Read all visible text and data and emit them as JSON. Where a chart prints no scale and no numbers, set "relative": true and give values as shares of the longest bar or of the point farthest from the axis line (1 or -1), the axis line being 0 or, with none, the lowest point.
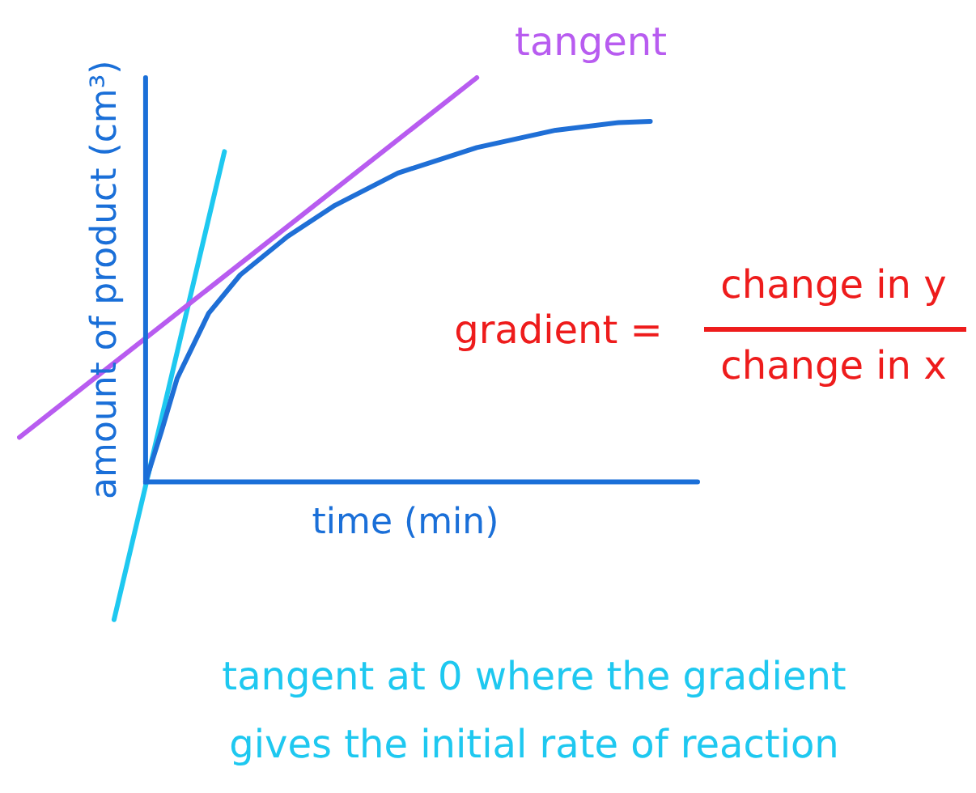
{
  "chart_data": {
    "type": "line",
    "relative": true,
    "xlabel": "time (min)",
    "ylabel": "amount of product (cm³)",
    "categories": [
      null,
      null,
      null,
      null,
      null,
      null,
      null,
      null,
      null,
      null,
      null,
      null,
      null,
      null,
      null,
      null,
      null,
      null,
      null,
      null,
      null,
      null,
      null,
      null,
      null,
      null,
      null,
      null,
      null,
      null,
      null,
      null,
      null,
      null,
      null,
      null,
      null,
      null,
      null,
      null,
      null,
      null,
      null,
      null
    ],
    "legend": false,
    "marker": "none",
    "line_style": "solid",
    "series": [
      {
        "color": "#1f6fd6",
        "values": [
          null,
          null,
          null,
          null,
          null,
          null,
          null,
          null,
          0,
          0.124,
          0.256,
          null,
          0.417,
          null,
          0.512,
          null,
          null,
          0.607,
          null,
          null,
          0.684,
          null,
          null,
          null,
          0.764,
          null,
          null,
          null,
          null,
          0.827,
          null,
          null,
          null,
          null,
          0.87,
          null,
          null,
          null,
          0.889,
          null,
          0.892,
          null,
          null,
          null
        ]
      },
      {
        "color": "#b85cf0",
        "values": [
          0.11,
          null,
          null,
          null,
          null,
          null,
          null,
          null,
          null,
          null,
          null,
          null,
          null,
          null,
          null,
          null,
          null,
          null,
          null,
          null,
          null,
          null,
          null,
          null,
          null,
          null,
          null,
          null,
          null,
          1,
          null,
          null,
          null,
          null,
          null,
          null,
          null,
          null,
          null,
          null,
          null,
          null,
          null,
          null
        ]
      },
      {
        "color": "#1ec8f0",
        "values": [
          null,
          null,
          null,
          null,
          null,
          null,
          -0.341,
          null,
          null,
          null,
          null,
          null,
          null,
          0.817,
          null,
          null,
          null,
          null,
          null,
          null,
          null,
          null,
          null,
          null,
          null,
          null,
          null,
          null,
          null,
          null,
          null,
          null,
          null,
          null,
          null,
          null,
          null,
          null,
          null,
          null,
          null,
          null,
          null,
          null
        ]
      }
    ],
    "annotations": [
      "tangent",
      "gradient =",
      "change in y",
      "change in x",
      "tangent at 0 where the gradient",
      "gives the initial rate of reaction"
    ]
  }
}
